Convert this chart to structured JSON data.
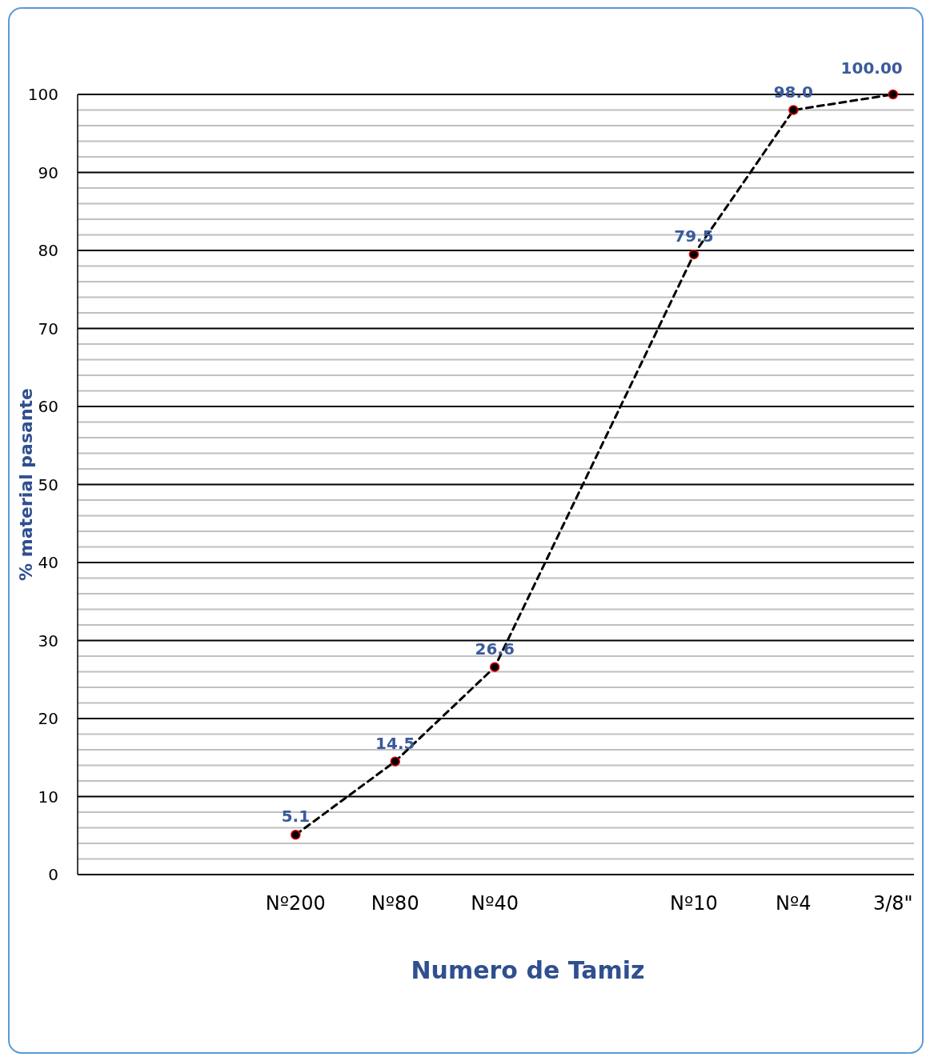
{
  "chart_data": {
    "type": "line",
    "xlabel": "Numero de Tamiz",
    "ylabel": "% material pasante",
    "categories": [
      null,
      null,
      "Nº200",
      "Nº80",
      "Nº40",
      null,
      "Nº10",
      "Nº4",
      "3/8\""
    ],
    "series": [
      {
        "color": "#000000",
        "values": [
          null,
          null,
          5.1,
          14.5,
          26.6,
          null,
          79.5,
          98.0,
          100.0
        ],
        "value_labels": [
          null,
          null,
          "5.1",
          "14.5",
          "26.6",
          null,
          "79.5",
          "98.0",
          "100.00"
        ]
      }
    ],
    "ylim": [
      0,
      100
    ],
    "yticks": [
      0,
      {
        "value": 2,
        "label": null
      },
      {
        "value": 4,
        "label": null
      },
      {
        "value": 6,
        "label": null
      },
      {
        "value": 8,
        "label": null
      },
      10,
      {
        "value": 12,
        "label": null
      },
      {
        "value": 14,
        "label": null
      },
      {
        "value": 16,
        "label": null
      },
      {
        "value": 18,
        "label": null
      },
      20,
      {
        "value": 22,
        "label": null
      },
      {
        "value": 24,
        "label": null
      },
      {
        "value": 26,
        "label": null
      },
      {
        "value": 28,
        "label": null
      },
      30,
      {
        "value": 32,
        "label": null
      },
      {
        "value": 34,
        "label": null
      },
      {
        "value": 36,
        "label": null
      },
      {
        "value": 38,
        "label": null
      },
      40,
      {
        "value": 42,
        "label": null
      },
      {
        "value": 44,
        "label": null
      },
      {
        "value": 46,
        "label": null
      },
      {
        "value": 48,
        "label": null
      },
      50,
      {
        "value": 52,
        "label": null
      },
      {
        "value": 54,
        "label": null
      },
      {
        "value": 56,
        "label": null
      },
      {
        "value": 58,
        "label": null
      },
      60,
      {
        "value": 62,
        "label": null
      },
      {
        "value": 64,
        "label": null
      },
      {
        "value": 66,
        "label": null
      },
      {
        "value": 68,
        "label": null
      },
      70,
      {
        "value": 72,
        "label": null
      },
      {
        "value": 74,
        "label": null
      },
      {
        "value": 76,
        "label": null
      },
      {
        "value": 78,
        "label": null
      },
      80,
      {
        "value": 82,
        "label": null
      },
      {
        "value": 84,
        "label": null
      },
      {
        "value": 86,
        "label": null
      },
      {
        "value": 88,
        "label": null
      },
      90,
      {
        "value": 92,
        "label": null
      },
      {
        "value": 94,
        "label": null
      },
      {
        "value": 96,
        "label": null
      },
      {
        "value": 98,
        "label": null
      },
      100
    ],
    "grid": "y",
    "marker": "circle",
    "line_style": "dashed"
  }
}
